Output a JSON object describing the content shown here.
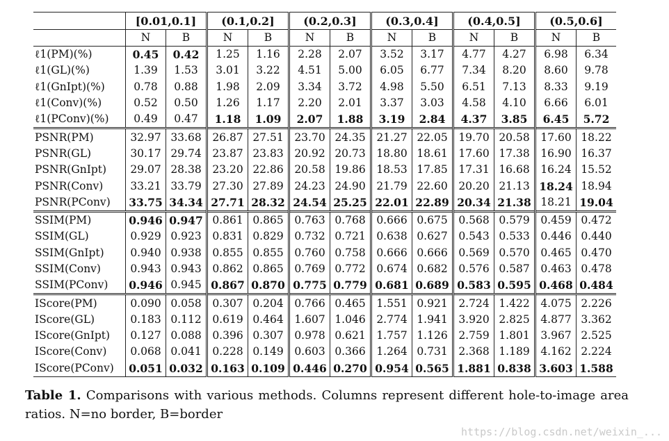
{
  "table": {
    "groups": [
      "[0.01,0.1]",
      "(0.1,0.2]",
      "(0.2,0.3]",
      "(0.3,0.4]",
      "(0.4,0.5]",
      "(0.5,0.6]"
    ],
    "subheaders": [
      "N",
      "B"
    ],
    "sections": [
      {
        "rows": [
          {
            "method": "ℓ1(PM)(%)",
            "values": [
              "0.45",
              "0.42",
              "1.25",
              "1.16",
              "2.28",
              "2.07",
              "3.52",
              "3.17",
              "4.77",
              "4.27",
              "6.98",
              "6.34"
            ],
            "bold": [
              0,
              1
            ]
          },
          {
            "method": "ℓ1(GL)(%)",
            "values": [
              "1.39",
              "1.53",
              "3.01",
              "3.22",
              "4.51",
              "5.00",
              "6.05",
              "6.77",
              "7.34",
              "8.20",
              "8.60",
              "9.78"
            ],
            "bold": []
          },
          {
            "method": "ℓ1(GnIpt)(%)",
            "values": [
              "0.78",
              "0.88",
              "1.98",
              "2.09",
              "3.34",
              "3.72",
              "4.98",
              "5.50",
              "6.51",
              "7.13",
              "8.33",
              "9.19"
            ],
            "bold": []
          },
          {
            "method": "ℓ1(Conv)(%)",
            "values": [
              "0.52",
              "0.50",
              "1.26",
              "1.17",
              "2.20",
              "2.01",
              "3.37",
              "3.03",
              "4.58",
              "4.10",
              "6.66",
              "6.01"
            ],
            "bold": []
          },
          {
            "method": "ℓ1(PConv)(%)",
            "values": [
              "0.49",
              "0.47",
              "1.18",
              "1.09",
              "2.07",
              "1.88",
              "3.19",
              "2.84",
              "4.37",
              "3.85",
              "6.45",
              "5.72"
            ],
            "bold": [
              2,
              3,
              4,
              5,
              6,
              7,
              8,
              9,
              10,
              11
            ]
          }
        ]
      },
      {
        "rows": [
          {
            "method": "PSNR(PM)",
            "values": [
              "32.97",
              "33.68",
              "26.87",
              "27.51",
              "23.70",
              "24.35",
              "21.27",
              "22.05",
              "19.70",
              "20.58",
              "17.60",
              "18.22"
            ],
            "bold": []
          },
          {
            "method": "PSNR(GL)",
            "values": [
              "30.17",
              "29.74",
              "23.87",
              "23.83",
              "20.92",
              "20.73",
              "18.80",
              "18.61",
              "17.60",
              "17.38",
              "16.90",
              "16.37"
            ],
            "bold": []
          },
          {
            "method": "PSNR(GnIpt)",
            "values": [
              "29.07",
              "28.38",
              "23.20",
              "22.86",
              "20.58",
              "19.86",
              "18.53",
              "17.85",
              "17.31",
              "16.68",
              "16.24",
              "15.52"
            ],
            "bold": []
          },
          {
            "method": "PSNR(Conv)",
            "values": [
              "33.21",
              "33.79",
              "27.30",
              "27.89",
              "24.23",
              "24.90",
              "21.79",
              "22.60",
              "20.20",
              "21.13",
              "18.24",
              "18.94"
            ],
            "bold": [
              10
            ]
          },
          {
            "method": "PSNR(PConv)",
            "values": [
              "33.75",
              "34.34",
              "27.71",
              "28.32",
              "24.54",
              "25.25",
              "22.01",
              "22.89",
              "20.34",
              "21.38",
              "18.21",
              "19.04"
            ],
            "bold": [
              0,
              1,
              2,
              3,
              4,
              5,
              6,
              7,
              8,
              9,
              11
            ]
          }
        ]
      },
      {
        "rows": [
          {
            "method": "SSIM(PM)",
            "values": [
              "0.946",
              "0.947",
              "0.861",
              "0.865",
              "0.763",
              "0.768",
              "0.666",
              "0.675",
              "0.568",
              "0.579",
              "0.459",
              "0.472"
            ],
            "bold": [
              0,
              1
            ]
          },
          {
            "method": "SSIM(GL)",
            "values": [
              "0.929",
              "0.923",
              "0.831",
              "0.829",
              "0.732",
              "0.721",
              "0.638",
              "0.627",
              "0.543",
              "0.533",
              "0.446",
              "0.440"
            ],
            "bold": []
          },
          {
            "method": "SSIM(GnIpt)",
            "values": [
              "0.940",
              "0.938",
              "0.855",
              "0.855",
              "0.760",
              "0.758",
              "0.666",
              "0.666",
              "0.569",
              "0.570",
              "0.465",
              "0.470"
            ],
            "bold": []
          },
          {
            "method": "SSIM(Conv)",
            "values": [
              "0.943",
              "0.943",
              "0.862",
              "0.865",
              "0.769",
              "0.772",
              "0.674",
              "0.682",
              "0.576",
              "0.587",
              "0.463",
              "0.478"
            ],
            "bold": []
          },
          {
            "method": "SSIM(PConv)",
            "values": [
              "0.946",
              "0.945",
              "0.867",
              "0.870",
              "0.775",
              "0.779",
              "0.681",
              "0.689",
              "0.583",
              "0.595",
              "0.468",
              "0.484"
            ],
            "bold": [
              0,
              2,
              3,
              4,
              5,
              6,
              7,
              8,
              9,
              10,
              11
            ]
          }
        ]
      },
      {
        "rows": [
          {
            "method": "IScore(PM)",
            "values": [
              "0.090",
              "0.058",
              "0.307",
              "0.204",
              "0.766",
              "0.465",
              "1.551",
              "0.921",
              "2.724",
              "1.422",
              "4.075",
              "2.226"
            ],
            "bold": []
          },
          {
            "method": "IScore(GL)",
            "values": [
              "0.183",
              "0.112",
              "0.619",
              "0.464",
              "1.607",
              "1.046",
              "2.774",
              "1.941",
              "3.920",
              "2.825",
              "4.877",
              "3.362"
            ],
            "bold": []
          },
          {
            "method": "IScore(GnIpt)",
            "values": [
              "0.127",
              "0.088",
              "0.396",
              "0.307",
              "0.978",
              "0.621",
              "1.757",
              "1.126",
              "2.759",
              "1.801",
              "3.967",
              "2.525"
            ],
            "bold": []
          },
          {
            "method": "IScore(Conv)",
            "values": [
              "0.068",
              "0.041",
              "0.228",
              "0.149",
              "0.603",
              "0.366",
              "1.264",
              "0.731",
              "2.368",
              "1.189",
              "4.162",
              "2.224"
            ],
            "bold": []
          },
          {
            "method": "IScore(PConv)",
            "values": [
              "0.051",
              "0.032",
              "0.163",
              "0.109",
              "0.446",
              "0.270",
              "0.954",
              "0.565",
              "1.881",
              "0.838",
              "3.603",
              "1.588"
            ],
            "bold": [
              0,
              1,
              2,
              3,
              4,
              5,
              6,
              7,
              8,
              9,
              10,
              11
            ]
          }
        ]
      }
    ]
  },
  "caption": {
    "label": "Table 1.",
    "text": "Comparisons with various methods. Columns represent different hole-to-image area ratios. N=no border, B=border"
  },
  "watermark": "https://blog.csdn.net/weixin_..."
}
